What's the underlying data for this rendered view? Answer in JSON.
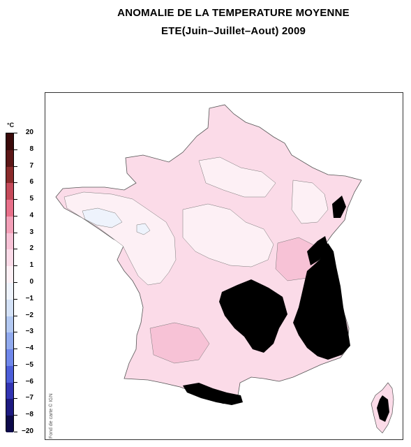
{
  "title": "ANOMALIE DE LA TEMPERATURE MOYENNE",
  "subtitle": "ETE(Juin–Juillet–Aout)  2009",
  "credit": "Fond de carte © IGN",
  "legend": {
    "unit": "°C",
    "ticks": [
      "20",
      "8",
      "7",
      "6",
      "5",
      "4",
      "3",
      "2",
      "1",
      "0",
      "−1",
      "−2",
      "−3",
      "−4",
      "−5",
      "−6",
      "−7",
      "−8",
      "−20"
    ],
    "bins": [
      {
        "range": "8 to 20",
        "color": "#3a0a0a"
      },
      {
        "range": "7 to 8",
        "color": "#5c1616"
      },
      {
        "range": "6 to 7",
        "color": "#8a2a2a"
      },
      {
        "range": "5 to 6",
        "color": "#c54a5a"
      },
      {
        "range": "4 to 5",
        "color": "#e8708a"
      },
      {
        "range": "3 to 4",
        "color": "#f3a0b8"
      },
      {
        "range": "2 to 3",
        "color": "#f7c2d6"
      },
      {
        "range": "1 to 2",
        "color": "#fbdbe8"
      },
      {
        "range": "0 to 1",
        "color": "#fdf0f5"
      },
      {
        "range": "-1 to 0",
        "color": "#eef3fc"
      },
      {
        "range": "-2 to -1",
        "color": "#d4e2f7"
      },
      {
        "range": "-3 to -2",
        "color": "#b3c9f2"
      },
      {
        "range": "-4 to -3",
        "color": "#91aaee"
      },
      {
        "range": "-5 to -4",
        "color": "#6f87ea"
      },
      {
        "range": "-6 to -5",
        "color": "#4c5ed9"
      },
      {
        "range": "-7 to -6",
        "color": "#3234b2"
      },
      {
        "range": "-8 to -7",
        "color": "#1d1a80"
      },
      {
        "range": "-20 to -8",
        "color": "#0d0a4a"
      }
    ]
  },
  "map": {
    "base_color": "#fbdbe8",
    "light_color": "#fdf0f5",
    "mid_color": "#f7c2d6",
    "cool_color": "#eef3fc",
    "relief_color": "#000000"
  }
}
